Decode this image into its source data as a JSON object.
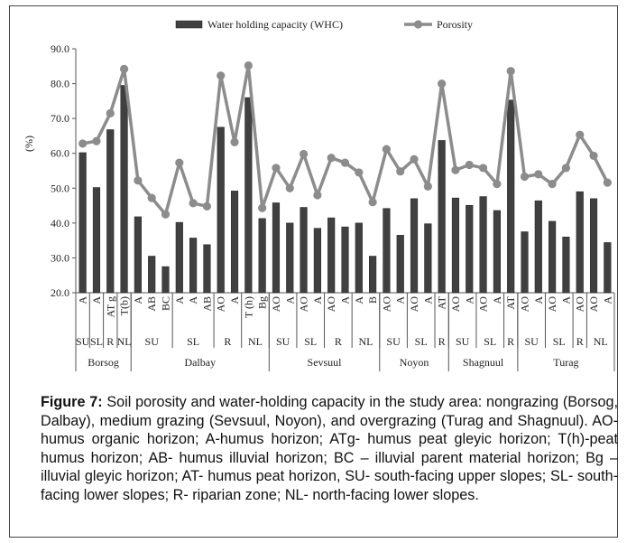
{
  "chart_data": {
    "type": "bar",
    "ylabel": "(%)",
    "ylim": [
      20,
      90
    ],
    "yticks": [
      "20.0",
      "30.0",
      "40.0",
      "50.0",
      "60.0",
      "70.0",
      "80.0",
      "90.0"
    ],
    "grid": false,
    "legend_position": "top",
    "series": [
      {
        "name": "Water holding capacity (WHC)",
        "color": "#404040",
        "values": [
          60.2,
          50.2,
          66.8,
          79.5,
          41.8,
          30.5,
          27.5,
          40.2,
          35.7,
          33.8,
          67.5,
          49.2,
          76.0,
          41.3,
          45.8,
          40.0,
          44.5,
          38.5,
          41.5,
          38.9,
          40.0,
          30.5,
          44.2,
          36.5,
          47.0,
          39.8,
          63.7,
          47.2,
          45.1,
          47.6,
          43.6,
          75.3,
          37.5,
          46.4,
          40.5,
          36.0,
          49.0,
          47.0,
          34.4
        ]
      },
      {
        "name": "Porosity",
        "color": "#8c8c8c",
        "values": [
          62.8,
          63.5,
          71.5,
          84.2,
          52.2,
          47.2,
          42.5,
          57.3,
          45.7,
          44.8,
          82.3,
          63.2,
          85.2,
          44.3,
          55.8,
          50.0,
          59.8,
          48.0,
          58.7,
          57.3,
          54.5,
          46.0,
          61.2,
          54.8,
          58.3,
          50.5,
          80.0,
          55.2,
          56.7,
          55.8,
          51.2,
          83.6,
          53.3,
          54.0,
          51.2,
          55.8,
          65.3,
          59.3,
          51.6
        ]
      }
    ],
    "categories": [
      "A",
      "A",
      "AT g",
      "T(b)",
      "A",
      "AB",
      "BC",
      "A",
      "A",
      "AB",
      "AO",
      "A",
      "T (h)",
      "Bg",
      "AO",
      "A",
      "AO",
      "A",
      "AO",
      "A",
      "A",
      "B",
      "AO",
      "A",
      "AO",
      "A",
      "AT",
      "AO",
      "A",
      "AO",
      "A",
      "AT",
      "AO",
      "A",
      "AO",
      "A",
      "AO",
      "AO",
      "A"
    ],
    "position_groups": [
      {
        "label": "SU",
        "start": 0,
        "end": 0
      },
      {
        "label": "SL",
        "start": 1,
        "end": 1
      },
      {
        "label": "R",
        "start": 2,
        "end": 2
      },
      {
        "label": "NL",
        "start": 3,
        "end": 3
      },
      {
        "label": "SU",
        "start": 4,
        "end": 6
      },
      {
        "label": "SL",
        "start": 7,
        "end": 9
      },
      {
        "label": "R",
        "start": 10,
        "end": 11
      },
      {
        "label": "NL",
        "start": 12,
        "end": 13
      },
      {
        "label": "SU",
        "start": 14,
        "end": 15
      },
      {
        "label": "SL",
        "start": 16,
        "end": 17
      },
      {
        "label": "R",
        "start": 18,
        "end": 19
      },
      {
        "label": "NL",
        "start": 20,
        "end": 21
      },
      {
        "label": "SU",
        "start": 22,
        "end": 23
      },
      {
        "label": "SL",
        "start": 24,
        "end": 25
      },
      {
        "label": "R",
        "start": 26,
        "end": 26
      },
      {
        "label": "SU",
        "start": 27,
        "end": 28
      },
      {
        "label": "SL",
        "start": 29,
        "end": 30
      },
      {
        "label": "R",
        "start": 31,
        "end": 31
      },
      {
        "label": "SU",
        "start": 32,
        "end": 33
      },
      {
        "label": "SL",
        "start": 34,
        "end": 35
      },
      {
        "label": "R",
        "start": 36,
        "end": 36
      },
      {
        "label": "NL",
        "start": 37,
        "end": 38
      }
    ],
    "site_groups": [
      {
        "label": "Borsog",
        "start": 0,
        "end": 3
      },
      {
        "label": "Dalbay",
        "start": 4,
        "end": 13
      },
      {
        "label": "Sevsuul",
        "start": 14,
        "end": 21
      },
      {
        "label": "Noyon",
        "start": 22,
        "end": 26
      },
      {
        "label": "Shagnuul",
        "start": 27,
        "end": 31
      },
      {
        "label": "Turag",
        "start": 32,
        "end": 38
      }
    ]
  },
  "caption": {
    "label": "Figure 7:",
    "text": " Soil porosity and water-holding capacity in the study area: nongrazing (Borsog, Dalbay), medium grazing (Sevsuul, Noyon), and overgrazing (Turag and Shagnuul). AO- humus organic horizon; A-humus horizon; ATg- humus peat gleyic horizon; T(h)-peat humus horizon; AB- humus illuvial horizon; BC – illuvial parent material horizon; Bg – illuvial gleyic horizon; AT- humus peat horizon, SU- south-facing upper slopes; SL- south-facing lower slopes; R- riparian zone; NL- north-facing lower slopes."
  }
}
